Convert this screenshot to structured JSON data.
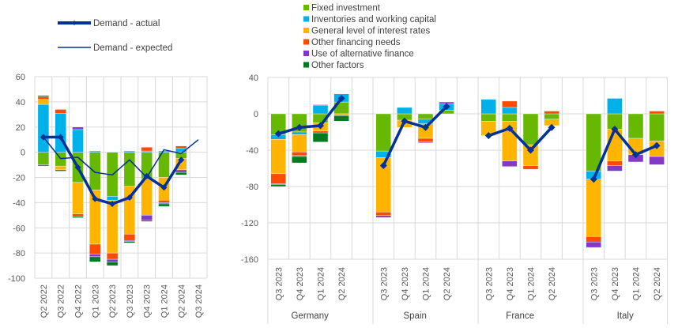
{
  "colors": {
    "fixed": "#66b800",
    "inventories": "#00b0e8",
    "interest": "#ffb400",
    "other_financing": "#ff4b00",
    "alternative": "#8139c6",
    "other_factors": "#007b1e",
    "line": "#003299",
    "grid": "#d9d9d9"
  },
  "legend_lines": [
    {
      "key": "actual",
      "label": "Demand - actual"
    },
    {
      "key": "expected",
      "label": "Demand - expected"
    }
  ],
  "legend_bars": [
    {
      "key": "fixed",
      "label": "Fixed investment"
    },
    {
      "key": "inventories",
      "label": "Inventories and working capital"
    },
    {
      "key": "interest",
      "label": "General level of interest rates"
    },
    {
      "key": "other_financing",
      "label": "Other financing needs"
    },
    {
      "key": "alternative",
      "label": "Use of alternative finance"
    },
    {
      "key": "other_factors",
      "label": "Other factors"
    }
  ],
  "chart_data": [
    {
      "type": "bar",
      "stacked": true,
      "title": "",
      "ylim": [
        -100,
        60
      ],
      "yticks": [
        -100,
        -80,
        -60,
        -40,
        -20,
        0,
        20,
        40,
        60
      ],
      "categories": [
        "Q2 2022",
        "Q3 2022",
        "Q4 2022",
        "Q1 2023",
        "Q2 2023",
        "Q3 2023",
        "Q4 2023",
        "Q1 2024",
        "Q2 2024",
        "Q3 2024"
      ],
      "series": [
        {
          "name": "Fixed investment",
          "key": "fixed",
          "values": [
            -10,
            -11,
            -24,
            -30,
            -35,
            -27,
            -21,
            -20,
            -5,
            null
          ]
        },
        {
          "name": "Inventories and working capital",
          "key": "inventories",
          "values": [
            38,
            31,
            18,
            1,
            -3,
            1,
            1,
            1,
            3,
            null
          ]
        },
        {
          "name": "General level of interest rates",
          "key": "interest",
          "values": [
            4,
            -3,
            -25,
            -43,
            -42,
            -38,
            -29,
            -18,
            -9,
            null
          ]
        },
        {
          "name": "Other financing needs",
          "key": "other_financing",
          "values": [
            2,
            3,
            -2,
            -8,
            -5,
            -5,
            3,
            -2,
            2,
            null
          ]
        },
        {
          "name": "Use of alternative finance",
          "key": "alternative",
          "values": [
            -1,
            0,
            2,
            -2,
            -2,
            -1,
            -4,
            -1,
            -2,
            null
          ]
        },
        {
          "name": "Other factors",
          "key": "other_factors",
          "values": [
            1,
            -1,
            -1,
            -4,
            -3,
            -1,
            -1,
            -2,
            -2,
            null
          ]
        }
      ],
      "lines": [
        {
          "name": "Demand - actual",
          "key": "actual",
          "values": [
            12,
            12,
            -12,
            -37,
            -41,
            -36,
            -19,
            -28,
            -6,
            null
          ]
        },
        {
          "name": "Demand - expected",
          "key": "expected",
          "values": [
            12,
            -5,
            -4,
            -16,
            -18,
            -6,
            -20,
            2,
            -1,
            10
          ]
        }
      ],
      "grid": true
    },
    {
      "type": "bar",
      "stacked": true,
      "title": "",
      "ylim": [
        -160,
        40
      ],
      "yticks": [
        -160,
        -120,
        -80,
        -40,
        0,
        40
      ],
      "groups": [
        "Germany",
        "Spain",
        "France",
        "Italy"
      ],
      "categories": [
        "Q3 2023",
        "Q4 2023",
        "Q1 2024",
        "Q2 2024"
      ],
      "series": [
        {
          "name": "Fixed investment",
          "key": "fixed",
          "values": [
            [
              -23,
              -20,
              -10,
              13
            ],
            [
              -41,
              -7,
              -6,
              4
            ],
            [
              -8,
              -8,
              -34,
              -6
            ],
            [
              -63,
              -17,
              -27,
              -30
            ]
          ]
        },
        {
          "name": "Inventories and working capital",
          "key": "inventories",
          "values": [
            [
              -5,
              -3,
              9,
              9
            ],
            [
              -7,
              7,
              -5,
              7
            ],
            [
              16,
              7,
              0,
              0
            ],
            [
              -9,
              17,
              0,
              0
            ]
          ]
        },
        {
          "name": "General level of interest rates",
          "key": "interest",
          "values": [
            [
              -38,
              -19,
              -9,
              -2
            ],
            [
              -60,
              -8,
              -16,
              0
            ],
            [
              -16,
              -44,
              -23,
              -7
            ],
            [
              -63,
              -35,
              -18,
              -17
            ]
          ]
        },
        {
          "name": "Other financing needs",
          "key": "other_financing",
          "values": [
            [
              -11,
              -4,
              -2,
              0
            ],
            [
              -4,
              0,
              -4,
              0
            ],
            [
              0,
              7,
              -4,
              3
            ],
            [
              -6,
              -5,
              0,
              3
            ]
          ]
        },
        {
          "name": "Use of alternative finance",
          "key": "alternative",
          "values": [
            [
              -1,
              -1,
              1,
              0
            ],
            [
              -2,
              0,
              -1,
              2
            ],
            [
              0,
              -6,
              0,
              0
            ],
            [
              -6,
              -6,
              -8,
              -9
            ]
          ]
        },
        {
          "name": "Other factors",
          "key": "other_factors",
          "values": [
            [
              -2,
              -7,
              -10,
              -6
            ],
            [
              0,
              0,
              0,
              0
            ],
            [
              0,
              0,
              0,
              0
            ],
            [
              0,
              0,
              0,
              0
            ]
          ]
        }
      ],
      "lines": [
        {
          "name": "Demand - actual",
          "key": "actual",
          "values": [
            [
              -22,
              -15,
              -13,
              17
            ],
            [
              -57,
              -8,
              -15,
              8
            ],
            [
              -24,
              -16,
              -40,
              -15
            ],
            [
              -72,
              -17,
              -45,
              -35
            ]
          ]
        }
      ],
      "grid": true
    }
  ]
}
